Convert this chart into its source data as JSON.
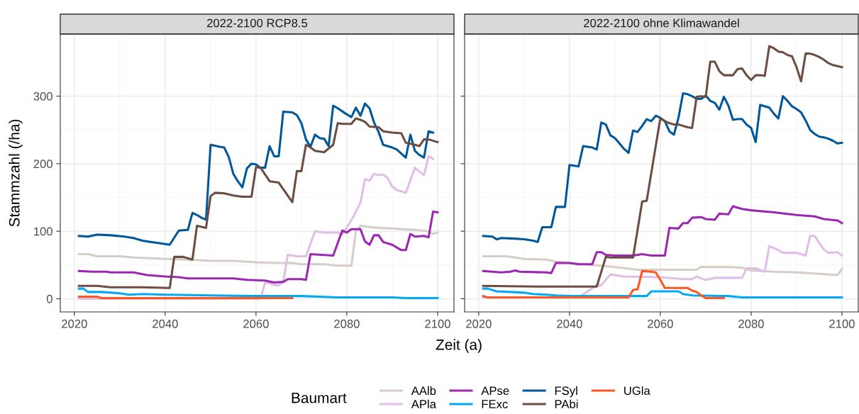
{
  "chart_data": [
    {
      "type": "line",
      "title": "2022-2100 RCP8.5",
      "xlabel": "Zeit (a)",
      "ylabel": "Stammzahl (/ha)",
      "legend_title": "Baumart",
      "legend": "bottom",
      "grid": true,
      "xlim": [
        2016.9,
        2103.6
      ],
      "ylim": [
        -19.5,
        392
      ],
      "xticks": [
        2020,
        2040,
        2060,
        2080,
        2100
      ],
      "yticks": [
        0,
        100,
        200,
        300
      ],
      "series": [
        {
          "name": "AAlb",
          "color": "#d7ccc8",
          "x": [
            2021,
            2023,
            2025,
            2030,
            2033,
            2040,
            2045,
            2050,
            2055,
            2060,
            2065,
            2068,
            2070,
            2075,
            2078,
            2081,
            2082,
            2083,
            2085,
            2090,
            2095,
            2098,
            2099,
            2100
          ],
          "values": [
            66,
            66,
            63,
            63,
            61,
            59,
            58,
            56,
            56,
            54,
            53,
            53,
            51,
            51,
            49,
            49,
            100,
            108,
            106,
            104,
            102,
            100,
            96,
            98
          ]
        },
        {
          "name": "APla",
          "color": "#e1bee7",
          "x": [
            2021,
            2061,
            2062,
            2063,
            2064,
            2065,
            2066,
            2067,
            2069,
            2071,
            2073,
            2075,
            2078,
            2079,
            2081,
            2083,
            2084,
            2085,
            2086,
            2087,
            2088,
            2089,
            2090,
            2091,
            2093,
            2095,
            2097,
            2098,
            2099
          ],
          "values": [
            0,
            0,
            24,
            23,
            20,
            20,
            25,
            65,
            63,
            63,
            100,
            98,
            98,
            95,
            116,
            142,
            177,
            175,
            185,
            183,
            184,
            179,
            166,
            161,
            157,
            194,
            183,
            211,
            207
          ]
        },
        {
          "name": "APse",
          "color": "#9c27b0",
          "x": [
            2021,
            2024,
            2027,
            2028,
            2031,
            2033,
            2036,
            2040,
            2043,
            2045,
            2050,
            2055,
            2058,
            2062,
            2064,
            2066,
            2067,
            2070,
            2071,
            2072,
            2077,
            2079,
            2080,
            2081,
            2083,
            2084,
            2085,
            2086,
            2087,
            2088,
            2090,
            2092,
            2093,
            2094,
            2095,
            2097,
            2098,
            2099,
            2100
          ],
          "values": [
            41,
            40,
            40,
            39,
            39,
            39,
            35,
            33,
            32,
            30,
            30,
            30,
            28,
            27,
            24,
            25,
            29,
            29,
            28,
            66,
            64,
            101,
            98,
            103,
            103,
            85,
            80,
            94,
            94,
            84,
            80,
            72,
            72,
            96,
            92,
            93,
            91,
            129,
            128
          ]
        },
        {
          "name": "FExc",
          "color": "#03a9f4",
          "x": [
            2021,
            2022,
            2023,
            2026,
            2030,
            2032,
            2035,
            2040,
            2050,
            2060,
            2070,
            2078,
            2090,
            2093,
            2100
          ],
          "values": [
            15,
            15,
            10,
            10,
            8,
            6,
            7,
            6,
            5,
            4,
            4,
            2,
            2,
            1,
            1
          ]
        },
        {
          "name": "FSyl",
          "color": "#01579b",
          "x": [
            2021,
            2023,
            2025,
            2028,
            2031,
            2033,
            2035,
            2037,
            2039,
            2041,
            2043,
            2045,
            2046,
            2047,
            2048,
            2049,
            2050,
            2052,
            2053,
            2054,
            2055,
            2056,
            2057,
            2058,
            2059,
            2060,
            2061,
            2062,
            2063,
            2064,
            2065,
            2066,
            2068,
            2069,
            2070,
            2071,
            2072,
            2073,
            2074,
            2075,
            2076,
            2077,
            2078,
            2080,
            2081,
            2082,
            2083,
            2084,
            2085,
            2086,
            2087,
            2088,
            2090,
            2091,
            2092,
            2093,
            2094,
            2095,
            2096,
            2097,
            2098,
            2099
          ],
          "values": [
            93,
            92,
            95,
            94,
            92,
            90,
            86,
            84,
            82,
            80,
            101,
            102,
            127,
            124,
            120,
            117,
            228,
            225,
            224,
            210,
            185,
            174,
            165,
            193,
            200,
            199,
            194,
            194,
            226,
            211,
            211,
            277,
            276,
            272,
            260,
            236,
            225,
            243,
            238,
            237,
            226,
            286,
            282,
            273,
            269,
            283,
            271,
            289,
            282,
            261,
            247,
            228,
            224,
            221,
            215,
            209,
            243,
            219,
            213,
            209,
            248,
            246
          ]
        },
        {
          "name": "PAbi",
          "color": "#6d4c41",
          "x": [
            2021,
            2025,
            2028,
            2035,
            2041,
            2042,
            2044,
            2046,
            2047,
            2049,
            2050,
            2051,
            2053,
            2055,
            2057,
            2059,
            2060,
            2061,
            2063,
            2065,
            2068,
            2069,
            2070,
            2071,
            2072,
            2073,
            2075,
            2077,
            2078,
            2079,
            2081,
            2082,
            2083,
            2084,
            2085,
            2087,
            2088,
            2090,
            2092,
            2093,
            2095,
            2096,
            2097,
            2098,
            2100
          ],
          "values": [
            19,
            19,
            17,
            17,
            16,
            62,
            62,
            58,
            108,
            105,
            152,
            157,
            156,
            153,
            151,
            151,
            195,
            194,
            174,
            172,
            143,
            189,
            189,
            228,
            224,
            219,
            217,
            228,
            260,
            259,
            259,
            267,
            265,
            262,
            255,
            254,
            248,
            246,
            245,
            231,
            228,
            226,
            236,
            236,
            232
          ]
        },
        {
          "name": "UGla",
          "color": "#ff5722",
          "x": [
            2021,
            2025,
            2026,
            2040,
            2068
          ],
          "values": [
            3,
            3,
            1,
            1,
            1
          ]
        }
      ]
    },
    {
      "type": "line",
      "title": "2022-2100 ohne Klimawandel",
      "grid": true,
      "tick_labels": "x",
      "xlim": [
        2016.9,
        2103.6
      ],
      "ylim": [
        -19.5,
        392
      ],
      "xticks": [
        2020,
        2040,
        2060,
        2080,
        2100
      ],
      "yticks": [
        0,
        100,
        200,
        300
      ],
      "series": [
        {
          "color": "#d7ccc8",
          "x": [
            2021,
            2026,
            2028,
            2030,
            2035,
            2037,
            2045,
            2050,
            2055,
            2060,
            2068,
            2069,
            2075,
            2078,
            2080,
            2085,
            2090,
            2095,
            2099,
            2100
          ],
          "values": [
            63,
            63,
            61,
            59,
            58,
            55,
            50,
            47,
            43,
            43,
            43,
            47,
            47,
            46,
            42,
            40,
            39,
            37,
            35,
            44
          ]
        },
        {
          "color": "#e1bee7",
          "x": [
            2021,
            2042,
            2046,
            2047,
            2049,
            2052,
            2060,
            2065,
            2067,
            2068,
            2069,
            2070,
            2072,
            2078,
            2079,
            2081,
            2083,
            2084,
            2086,
            2087,
            2090,
            2092,
            2093,
            2094,
            2096,
            2097,
            2099,
            2100
          ],
          "values": [
            2,
            2,
            20,
            20,
            36,
            33,
            32,
            29,
            29,
            33,
            30,
            28,
            31,
            31,
            45,
            45,
            40,
            78,
            72,
            68,
            68,
            64,
            93,
            93,
            73,
            68,
            69,
            64
          ]
        },
        {
          "color": "#9c27b0",
          "x": [
            2021,
            2023,
            2025,
            2027,
            2028,
            2029,
            2035,
            2036,
            2037,
            2040,
            2042,
            2045,
            2046,
            2047,
            2048,
            2050,
            2054,
            2056,
            2058,
            2061,
            2062,
            2064,
            2065,
            2066,
            2067,
            2069,
            2070,
            2072,
            2073,
            2075,
            2076,
            2078,
            2080,
            2085,
            2090,
            2094,
            2096,
            2099,
            2100
          ],
          "values": [
            41,
            40,
            39,
            40,
            42,
            40,
            39,
            38,
            53,
            53,
            51,
            51,
            69,
            69,
            65,
            64,
            64,
            66,
            64,
            64,
            105,
            104,
            112,
            112,
            120,
            121,
            118,
            117,
            126,
            125,
            137,
            133,
            131,
            128,
            124,
            122,
            118,
            116,
            112
          ]
        },
        {
          "color": "#03a9f4",
          "x": [
            2021,
            2022,
            2024,
            2027,
            2030,
            2032,
            2035,
            2037,
            2040,
            2057,
            2058,
            2063,
            2064,
            2065,
            2067,
            2075,
            2078,
            2100
          ],
          "values": [
            15,
            15,
            11,
            10,
            9,
            7,
            6,
            5,
            4,
            4,
            11,
            11,
            11,
            7,
            5,
            4,
            2,
            2
          ]
        },
        {
          "color": "#01579b",
          "x": [
            2021,
            2023,
            2024,
            2025,
            2028,
            2030,
            2032,
            2033,
            2034,
            2036,
            2037,
            2039,
            2040,
            2042,
            2043,
            2045,
            2046,
            2047,
            2048,
            2049,
            2050,
            2051,
            2052,
            2053,
            2054,
            2055,
            2056,
            2057,
            2058,
            2059,
            2060,
            2061,
            2062,
            2063,
            2064,
            2065,
            2066,
            2067,
            2068,
            2069,
            2070,
            2071,
            2072,
            2073,
            2074,
            2075,
            2076,
            2077,
            2078,
            2079,
            2080,
            2081,
            2082,
            2083,
            2084,
            2085,
            2086,
            2087,
            2088,
            2089,
            2090,
            2091,
            2092,
            2093,
            2094,
            2095,
            2096,
            2097,
            2098,
            2099,
            2100
          ],
          "values": [
            93,
            92,
            88,
            90,
            89,
            88,
            86,
            84,
            106,
            106,
            136,
            136,
            198,
            196,
            226,
            224,
            221,
            261,
            258,
            242,
            238,
            230,
            222,
            216,
            249,
            247,
            256,
            266,
            263,
            271,
            268,
            263,
            248,
            243,
            268,
            304,
            303,
            300,
            296,
            296,
            301,
            293,
            290,
            280,
            299,
            286,
            265,
            266,
            266,
            258,
            253,
            232,
            287,
            285,
            283,
            274,
            267,
            300,
            293,
            285,
            281,
            276,
            264,
            250,
            244,
            240,
            239,
            237,
            234,
            230,
            231
          ]
        },
        {
          "color": "#6d4c41",
          "x": [
            2021,
            2033,
            2046,
            2048,
            2049,
            2054,
            2056,
            2057,
            2060,
            2061,
            2062,
            2063,
            2064,
            2066,
            2067,
            2068,
            2069,
            2070,
            2071,
            2072,
            2073,
            2074,
            2075,
            2076,
            2077,
            2078,
            2079,
            2080,
            2081,
            2082,
            2083,
            2084,
            2085,
            2086,
            2087,
            2088,
            2089,
            2090,
            2091,
            2092,
            2093,
            2094,
            2095,
            2096,
            2097,
            2098,
            2100
          ],
          "values": [
            19,
            18,
            18,
            62,
            61,
            61,
            144,
            145,
            267,
            263,
            260,
            258,
            258,
            254,
            253,
            299,
            300,
            299,
            351,
            351,
            337,
            331,
            331,
            331,
            340,
            341,
            331,
            324,
            331,
            331,
            330,
            374,
            371,
            366,
            365,
            361,
            359,
            343,
            322,
            363,
            363,
            361,
            358,
            354,
            349,
            346,
            343
          ]
        },
        {
          "color": "#ff5722",
          "x": [
            2021,
            2022,
            2053,
            2054,
            2055,
            2056,
            2058,
            2059,
            2060,
            2061,
            2063,
            2066,
            2067,
            2068,
            2069,
            2070,
            2074
          ],
          "values": [
            4,
            2,
            2,
            13,
            14,
            41,
            40,
            39,
            28,
            16,
            16,
            16,
            12,
            10,
            5,
            1,
            1
          ]
        }
      ]
    }
  ]
}
